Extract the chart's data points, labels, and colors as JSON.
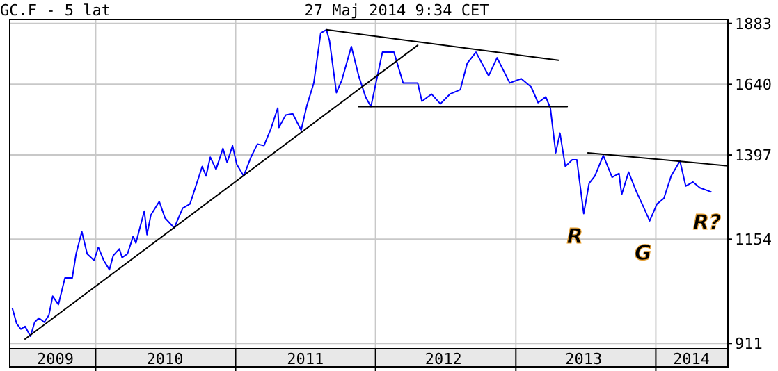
{
  "chart_data": {
    "type": "line",
    "title": "GC.F - 5 lat",
    "subtitle": "27 Maj 2014 9:34 CET",
    "log": true,
    "grid": true,
    "line_style": "solid",
    "marker": "none",
    "xlim": [
      "2009-05-22",
      "2014-07-08"
    ],
    "xticks": [
      {
        "value": "2010-01-01",
        "label": null
      },
      {
        "value": "2011-01-01",
        "label": null
      },
      {
        "value": "2012-01-01",
        "label": null
      },
      {
        "value": "2013-01-01",
        "label": null
      },
      {
        "value": "2014-01-01",
        "label": null
      },
      {
        "value": "2009-09-18",
        "label": "2009"
      },
      {
        "value": "2010-07-01",
        "label": "2010"
      },
      {
        "value": "2011-07-02",
        "label": "2011"
      },
      {
        "value": "2012-06-26",
        "label": "2012"
      },
      {
        "value": "2013-06-27",
        "label": "2013"
      },
      {
        "value": "2014-04-04",
        "label": "2014"
      }
    ],
    "ylim": [
      900,
      1900
    ],
    "yticks": [
      911,
      1154,
      1397,
      1640,
      1883
    ],
    "series": [
      {
        "color": "#0000ff",
        "x": [
          "2009-05-29",
          "2009-06-09",
          "2009-06-20",
          "2009-07-01",
          "2009-07-15",
          "2009-07-26",
          "2009-08-06",
          "2009-08-20",
          "2009-09-01",
          "2009-09-11",
          "2009-09-26",
          "2009-10-13",
          "2009-11-01",
          "2009-11-11",
          "2009-11-26",
          "2009-12-10",
          "2009-12-28",
          "2010-01-08",
          "2010-01-22",
          "2010-02-06",
          "2010-02-16",
          "2010-03-04",
          "2010-03-11",
          "2010-03-25",
          "2010-04-09",
          "2010-04-16",
          "2010-05-08",
          "2010-05-15",
          "2010-05-25",
          "2010-06-16",
          "2010-07-01",
          "2010-07-25",
          "2010-08-16",
          "2010-09-04",
          "2010-10-06",
          "2010-10-16",
          "2010-10-27",
          "2010-11-11",
          "2010-11-29",
          "2010-12-10",
          "2010-12-24",
          "2011-01-04",
          "2011-01-22",
          "2011-02-10",
          "2011-02-27",
          "2011-03-16",
          "2011-04-03",
          "2011-04-21",
          "2011-04-24",
          "2011-05-12",
          "2011-05-30",
          "2011-06-21",
          "2011-07-06",
          "2011-07-24",
          "2011-08-11",
          "2011-08-26",
          "2011-09-03",
          "2011-09-21",
          "2011-10-05",
          "2011-10-30",
          "2011-11-18",
          "2011-12-06",
          "2011-12-20",
          "2012-01-19",
          "2012-02-18",
          "2012-03-13",
          "2012-04-20",
          "2012-05-01",
          "2012-05-26",
          "2012-06-18",
          "2012-07-13",
          "2012-08-09",
          "2012-08-27",
          "2012-09-19",
          "2012-10-22",
          "2012-11-13",
          "2012-12-16",
          "2013-01-15",
          "2013-02-10",
          "2013-02-28",
          "2013-03-20",
          "2013-04-01",
          "2013-04-15",
          "2013-04-26",
          "2013-05-10",
          "2013-05-28",
          "2013-06-09",
          "2013-06-27",
          "2013-07-11",
          "2013-07-26",
          "2013-08-17",
          "2013-09-09",
          "2013-09-27",
          "2013-10-04",
          "2013-10-22",
          "2013-11-10",
          "2013-11-28",
          "2013-12-16",
          "2014-01-04",
          "2014-01-22",
          "2014-02-10",
          "2014-03-05",
          "2014-03-20",
          "2014-04-08",
          "2014-04-26",
          "2014-05-25"
        ],
        "values": [
          986,
          953,
          941,
          947,
          926,
          956,
          965,
          956,
          971,
          1014,
          995,
          1057,
          1057,
          1116,
          1174,
          1116,
          1100,
          1133,
          1100,
          1077,
          1112,
          1129,
          1107,
          1116,
          1162,
          1144,
          1230,
          1166,
          1219,
          1257,
          1211,
          1184,
          1238,
          1250,
          1361,
          1332,
          1390,
          1352,
          1418,
          1373,
          1427,
          1368,
          1332,
          1390,
          1432,
          1427,
          1482,
          1554,
          1487,
          1530,
          1534,
          1478,
          1563,
          1645,
          1842,
          1856,
          1810,
          1609,
          1655,
          1787,
          1672,
          1594,
          1559,
          1764,
          1764,
          1645,
          1645,
          1578,
          1604,
          1569,
          1604,
          1620,
          1720,
          1764,
          1672,
          1742,
          1645,
          1661,
          1630,
          1573,
          1594,
          1554,
          1404,
          1468,
          1361,
          1382,
          1382,
          1223,
          1310,
          1332,
          1395,
          1328,
          1340,
          1277,
          1344,
          1289,
          1246,
          1203,
          1250,
          1266,
          1332,
          1378,
          1302,
          1314,
          1297,
          1285
        ]
      },
      {
        "type": "line",
        "color": "#000000",
        "x": [
          "2009-07-01",
          "2012-04-20"
        ],
        "values": [
          920,
          1792
        ]
      },
      {
        "type": "line",
        "color": "#000000",
        "x": [
          "2011-08-26",
          "2013-04-22"
        ],
        "values": [
          1856,
          1732
        ]
      },
      {
        "type": "line",
        "color": "#000000",
        "x": [
          "2011-11-18",
          "2013-05-15"
        ],
        "values": [
          1559,
          1559
        ]
      },
      {
        "type": "line",
        "color": "#000000",
        "x": [
          "2013-07-08",
          "2014-07-08"
        ],
        "values": [
          1404,
          1363
        ]
      }
    ],
    "annotations": [
      "R",
      "G",
      "R?"
    ]
  }
}
